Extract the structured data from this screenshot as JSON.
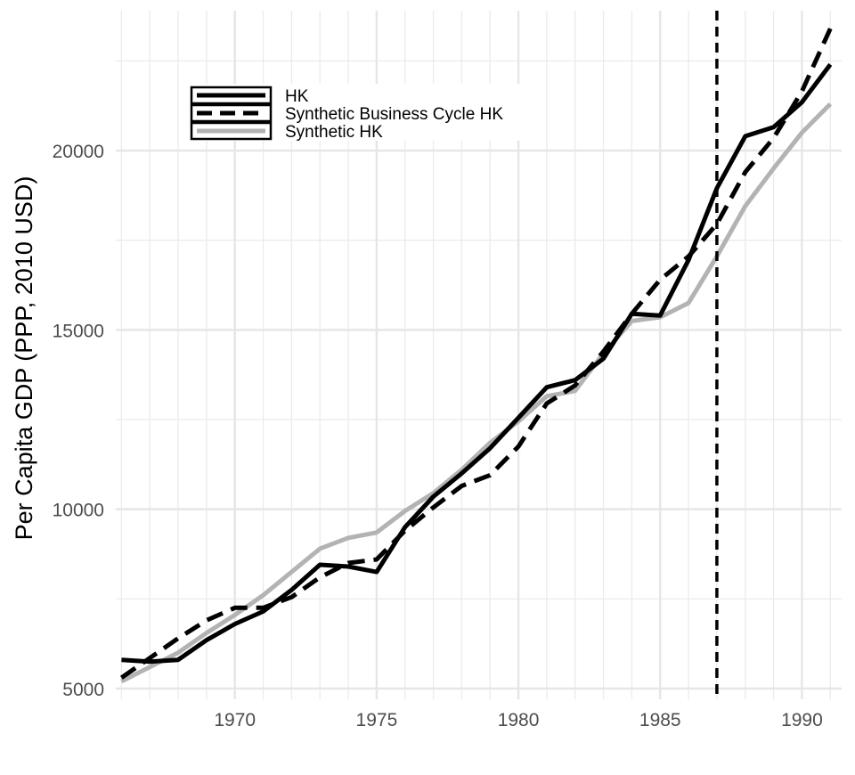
{
  "chart_data": {
    "type": "line",
    "title": "",
    "xlabel": "",
    "ylabel": "Per Capita GDP (PPP, 2010 USD)",
    "xlim": [
      1965.8,
      1991.4
    ],
    "ylim": [
      4700,
      23900
    ],
    "x_ticks": [
      1970,
      1975,
      1980,
      1985,
      1990
    ],
    "y_ticks": [
      5000,
      10000,
      15000,
      20000
    ],
    "x_tick_labels": [
      "1970",
      "1975",
      "1980",
      "1985",
      "1990"
    ],
    "y_tick_labels": [
      "5000",
      "10000",
      "15000",
      "20000"
    ],
    "grid": true,
    "legend_position": "top-left",
    "vline": 1987,
    "x": [
      1966,
      1967,
      1968,
      1969,
      1970,
      1971,
      1972,
      1973,
      1974,
      1975,
      1976,
      1977,
      1978,
      1979,
      1980,
      1981,
      1982,
      1983,
      1984,
      1985,
      1986,
      1987,
      1988,
      1989,
      1990,
      1991
    ],
    "series": [
      {
        "name": "HK",
        "color": "#000000",
        "style": "solid",
        "values": [
          5800,
          5750,
          5800,
          6350,
          6800,
          7150,
          7750,
          8450,
          8400,
          8250,
          9500,
          10350,
          11000,
          11700,
          12550,
          13400,
          13600,
          14200,
          15450,
          15400,
          16950,
          18950,
          20400,
          20650,
          21350,
          22400
        ]
      },
      {
        "name": "Synthetic Business Cycle HK",
        "color": "#000000",
        "style": "dashed",
        "values": [
          5300,
          5850,
          6400,
          6900,
          7250,
          7250,
          7550,
          8100,
          8500,
          8600,
          9400,
          10050,
          10650,
          10950,
          11750,
          12950,
          13450,
          14400,
          15450,
          16400,
          17050,
          17950,
          19400,
          20350,
          21650,
          23400
        ]
      },
      {
        "name": "Synthetic HK",
        "color": "#b3b3b3",
        "style": "solid",
        "values": [
          5200,
          5600,
          6000,
          6550,
          7050,
          7600,
          8250,
          8900,
          9200,
          9350,
          9950,
          10450,
          11100,
          11850,
          12450,
          13150,
          13300,
          14350,
          15250,
          15350,
          15750,
          17050,
          18450,
          19500,
          20500,
          21300
        ]
      }
    ]
  }
}
